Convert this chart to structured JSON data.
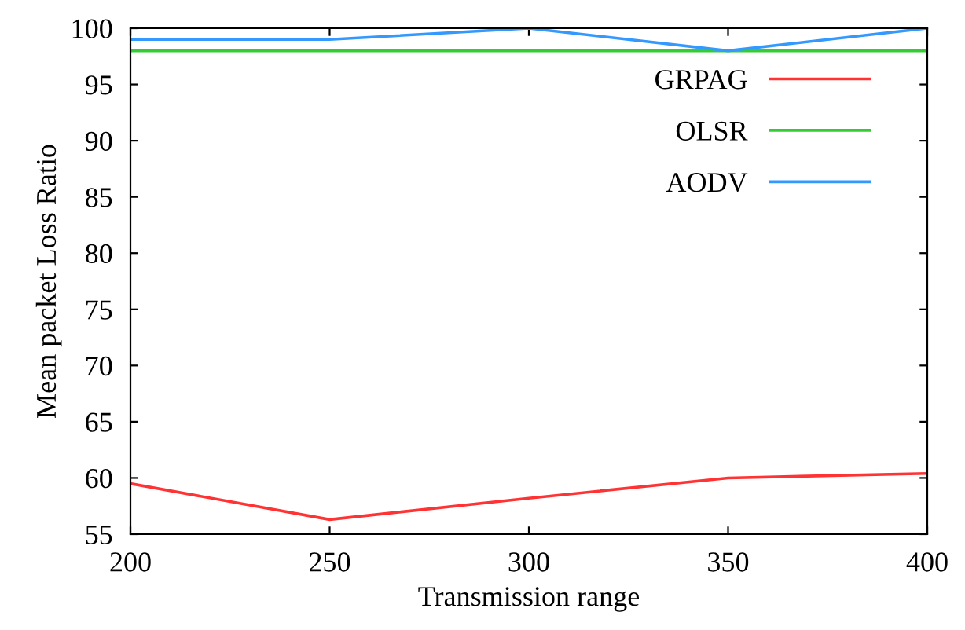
{
  "chart_data": {
    "type": "line",
    "xlabel": "Transmission range",
    "ylabel": "Mean packet Loss Ratio",
    "x": [
      200,
      250,
      300,
      350,
      400
    ],
    "series": [
      {
        "name": "GRPAG",
        "color": "#ff3333",
        "values": [
          59.5,
          56.3,
          58.2,
          60.0,
          60.4
        ]
      },
      {
        "name": "OLSR",
        "color": "#33cc33",
        "values": [
          98,
          98,
          98,
          98,
          98
        ]
      },
      {
        "name": "AODV",
        "color": "#3399ff",
        "values": [
          99,
          99,
          100,
          98,
          100
        ]
      }
    ],
    "xlim": [
      200,
      400
    ],
    "xticks": [
      200,
      250,
      300,
      350,
      400
    ],
    "ylim": [
      55,
      100
    ],
    "yticks": [
      55,
      60,
      65,
      70,
      75,
      80,
      85,
      90,
      95,
      100
    ],
    "grid": false,
    "legend": "top right",
    "marker": "none",
    "line_style": "solid"
  }
}
